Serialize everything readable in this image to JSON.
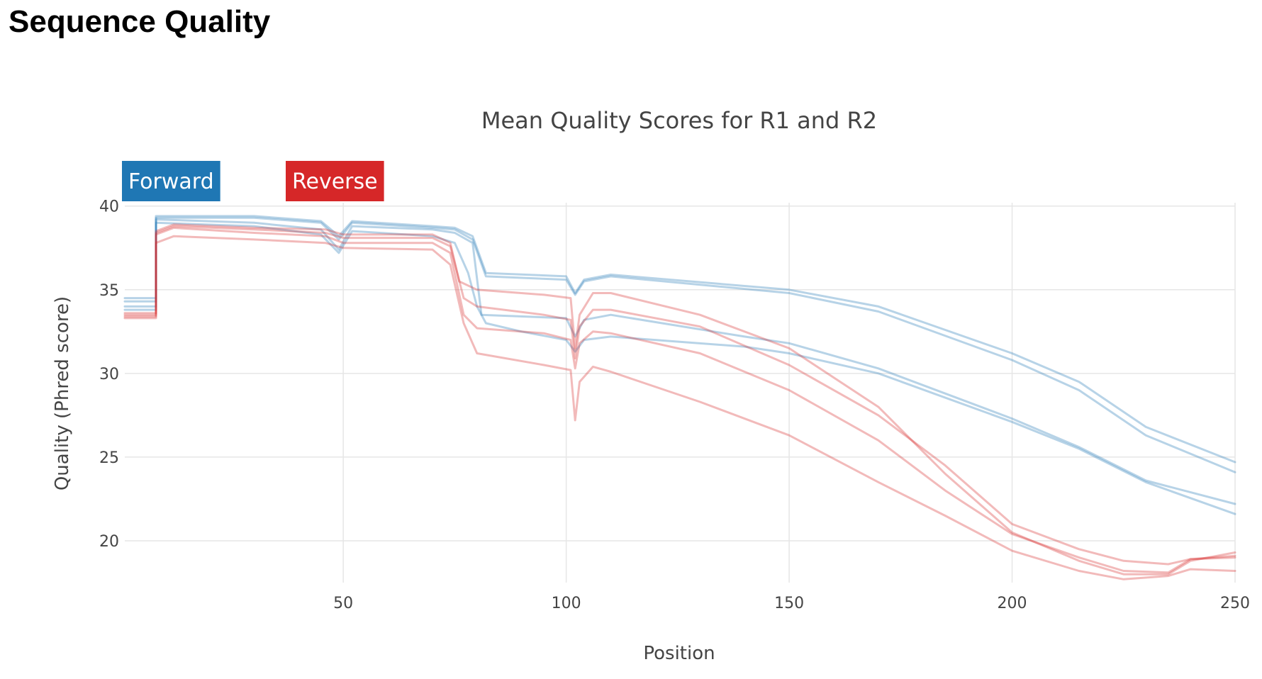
{
  "page": {
    "title": "Sequence Quality"
  },
  "colors": {
    "forward": "#1f77b4",
    "reverse": "#d62728",
    "grid": "#e6e6e6",
    "text": "#444444"
  },
  "chart_data": {
    "type": "line",
    "title": "Mean Quality Scores for R1 and R2",
    "xlabel": "Position",
    "ylabel": "Quality (Phred score)",
    "xlim": [
      1,
      250
    ],
    "ylim": [
      17.5,
      40.2
    ],
    "xticks": [
      50,
      100,
      150,
      200,
      250
    ],
    "yticks": [
      20,
      25,
      30,
      35,
      40
    ],
    "legend": [
      {
        "name": "Forward",
        "color": "#1f77b4"
      },
      {
        "name": "Reverse",
        "color": "#d62728"
      }
    ],
    "series": [
      {
        "name": "Forward",
        "group": "Forward",
        "points": [
          [
            1,
            34.5
          ],
          [
            8,
            34.5
          ],
          [
            8,
            39.4
          ],
          [
            30,
            39.4
          ],
          [
            45,
            39.1
          ],
          [
            49,
            38.2
          ],
          [
            52,
            39.1
          ],
          [
            70,
            38.8
          ],
          [
            75,
            38.7
          ],
          [
            79,
            38.2
          ],
          [
            82,
            36.0
          ],
          [
            100,
            35.8
          ],
          [
            102,
            34.8
          ],
          [
            104,
            35.6
          ],
          [
            110,
            35.9
          ],
          [
            150,
            35.0
          ],
          [
            170,
            34.0
          ],
          [
            200,
            31.2
          ],
          [
            215,
            29.5
          ],
          [
            230,
            26.8
          ],
          [
            250,
            24.7
          ]
        ]
      },
      {
        "name": "Forward",
        "group": "Forward",
        "points": [
          [
            1,
            34.3
          ],
          [
            8,
            34.3
          ],
          [
            8,
            39.3
          ],
          [
            30,
            39.3
          ],
          [
            45,
            39.0
          ],
          [
            49,
            38.0
          ],
          [
            52,
            39.0
          ],
          [
            70,
            38.7
          ],
          [
            75,
            38.6
          ],
          [
            79,
            38.0
          ],
          [
            82,
            35.8
          ],
          [
            100,
            35.6
          ],
          [
            102,
            34.7
          ],
          [
            104,
            35.5
          ],
          [
            110,
            35.8
          ],
          [
            150,
            34.8
          ],
          [
            170,
            33.7
          ],
          [
            200,
            30.8
          ],
          [
            215,
            29.0
          ],
          [
            230,
            26.3
          ],
          [
            250,
            24.1
          ]
        ]
      },
      {
        "name": "Forward",
        "group": "Forward",
        "points": [
          [
            1,
            34.0
          ],
          [
            8,
            34.0
          ],
          [
            8,
            39.2
          ],
          [
            30,
            39.0
          ],
          [
            45,
            38.6
          ],
          [
            49,
            37.4
          ],
          [
            52,
            38.8
          ],
          [
            70,
            38.6
          ],
          [
            75,
            38.4
          ],
          [
            79,
            37.8
          ],
          [
            81,
            33.5
          ],
          [
            100,
            33.3
          ],
          [
            102,
            32.2
          ],
          [
            104,
            33.2
          ],
          [
            110,
            33.5
          ],
          [
            140,
            32.2
          ],
          [
            150,
            31.8
          ],
          [
            170,
            30.3
          ],
          [
            200,
            27.3
          ],
          [
            215,
            25.6
          ],
          [
            230,
            23.6
          ],
          [
            250,
            22.2
          ]
        ]
      },
      {
        "name": "Forward",
        "group": "Forward",
        "points": [
          [
            1,
            33.8
          ],
          [
            8,
            33.8
          ],
          [
            8,
            39.0
          ],
          [
            30,
            38.8
          ],
          [
            45,
            38.3
          ],
          [
            49,
            37.2
          ],
          [
            52,
            38.5
          ],
          [
            70,
            38.2
          ],
          [
            75,
            37.8
          ],
          [
            78,
            36.0
          ],
          [
            80,
            34.0
          ],
          [
            82,
            33.0
          ],
          [
            90,
            32.5
          ],
          [
            100,
            32.0
          ],
          [
            102,
            31.3
          ],
          [
            104,
            32.0
          ],
          [
            110,
            32.2
          ],
          [
            140,
            31.6
          ],
          [
            150,
            31.2
          ],
          [
            170,
            30.0
          ],
          [
            200,
            27.1
          ],
          [
            215,
            25.5
          ],
          [
            230,
            23.5
          ],
          [
            250,
            21.6
          ]
        ]
      },
      {
        "name": "Reverse",
        "group": "Reverse",
        "points": [
          [
            1,
            33.6
          ],
          [
            8,
            33.6
          ],
          [
            8,
            38.5
          ],
          [
            12,
            38.9
          ],
          [
            30,
            38.7
          ],
          [
            46,
            38.6
          ],
          [
            50,
            38.3
          ],
          [
            70,
            38.3
          ],
          [
            74,
            37.8
          ],
          [
            76,
            35.5
          ],
          [
            80,
            35.0
          ],
          [
            95,
            34.7
          ],
          [
            101,
            34.5
          ],
          [
            102,
            31.5
          ],
          [
            103,
            33.5
          ],
          [
            106,
            34.8
          ],
          [
            110,
            34.8
          ],
          [
            130,
            33.5
          ],
          [
            150,
            31.5
          ],
          [
            170,
            28.0
          ],
          [
            185,
            24.0
          ],
          [
            200,
            20.5
          ],
          [
            215,
            18.8
          ],
          [
            225,
            18.0
          ],
          [
            235,
            18.0
          ],
          [
            240,
            18.8
          ],
          [
            250,
            19.3
          ]
        ]
      },
      {
        "name": "Reverse",
        "group": "Reverse",
        "points": [
          [
            1,
            33.5
          ],
          [
            8,
            33.5
          ],
          [
            8,
            38.4
          ],
          [
            12,
            38.8
          ],
          [
            30,
            38.6
          ],
          [
            46,
            38.4
          ],
          [
            50,
            38.1
          ],
          [
            70,
            38.1
          ],
          [
            74,
            37.6
          ],
          [
            77,
            34.5
          ],
          [
            80,
            34.0
          ],
          [
            95,
            33.5
          ],
          [
            101,
            33.2
          ],
          [
            102,
            30.9
          ],
          [
            103,
            32.8
          ],
          [
            106,
            33.8
          ],
          [
            110,
            33.8
          ],
          [
            130,
            32.8
          ],
          [
            150,
            30.5
          ],
          [
            170,
            27.5
          ],
          [
            185,
            24.5
          ],
          [
            200,
            21.0
          ],
          [
            215,
            19.5
          ],
          [
            225,
            18.8
          ],
          [
            235,
            18.6
          ],
          [
            240,
            18.9
          ],
          [
            250,
            19.1
          ]
        ]
      },
      {
        "name": "Reverse",
        "group": "Reverse",
        "points": [
          [
            1,
            33.4
          ],
          [
            8,
            33.4
          ],
          [
            8,
            38.3
          ],
          [
            12,
            38.7
          ],
          [
            30,
            38.4
          ],
          [
            46,
            38.2
          ],
          [
            50,
            37.8
          ],
          [
            70,
            37.8
          ],
          [
            74,
            37.2
          ],
          [
            77,
            33.5
          ],
          [
            80,
            32.7
          ],
          [
            95,
            32.4
          ],
          [
            101,
            32.0
          ],
          [
            102,
            30.3
          ],
          [
            103,
            31.8
          ],
          [
            106,
            32.5
          ],
          [
            110,
            32.4
          ],
          [
            130,
            31.2
          ],
          [
            150,
            29.0
          ],
          [
            170,
            26.0
          ],
          [
            185,
            23.0
          ],
          [
            200,
            20.4
          ],
          [
            215,
            19.0
          ],
          [
            225,
            18.2
          ],
          [
            235,
            18.1
          ],
          [
            240,
            18.9
          ],
          [
            250,
            19.0
          ]
        ]
      },
      {
        "name": "Reverse",
        "group": "Reverse",
        "points": [
          [
            1,
            33.3
          ],
          [
            8,
            33.3
          ],
          [
            8,
            37.8
          ],
          [
            12,
            38.2
          ],
          [
            30,
            38.0
          ],
          [
            46,
            37.8
          ],
          [
            50,
            37.5
          ],
          [
            70,
            37.4
          ],
          [
            74,
            36.5
          ],
          [
            77,
            33.0
          ],
          [
            80,
            31.2
          ],
          [
            95,
            30.5
          ],
          [
            101,
            30.2
          ],
          [
            102,
            27.2
          ],
          [
            103,
            29.5
          ],
          [
            106,
            30.4
          ],
          [
            110,
            30.1
          ],
          [
            130,
            28.3
          ],
          [
            150,
            26.3
          ],
          [
            170,
            23.5
          ],
          [
            185,
            21.5
          ],
          [
            200,
            19.4
          ],
          [
            215,
            18.2
          ],
          [
            225,
            17.7
          ],
          [
            235,
            17.9
          ],
          [
            240,
            18.3
          ],
          [
            250,
            18.2
          ]
        ]
      }
    ]
  }
}
